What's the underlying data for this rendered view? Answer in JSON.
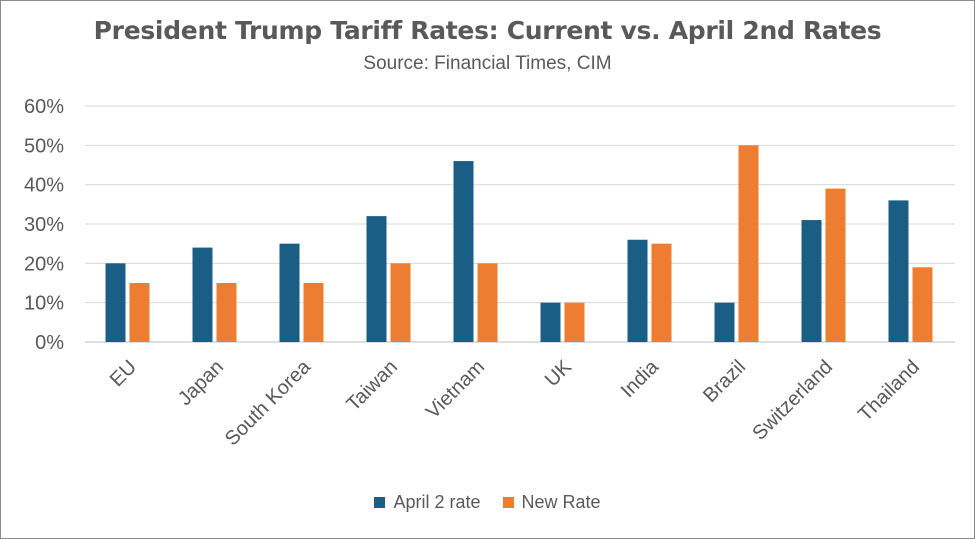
{
  "chart_data": {
    "type": "bar",
    "title": "President Trump Tariff Rates: Current vs. April 2nd Rates",
    "subtitle": "Source: Financial Times, CIM",
    "categories": [
      "EU",
      "Japan",
      "South Korea",
      "Taiwan",
      "Vietnam",
      "UK",
      "India",
      "Brazil",
      "Switzerland",
      "Thailand"
    ],
    "series": [
      {
        "name": "April 2 rate",
        "color": "#1a5e85",
        "values": [
          20,
          24,
          25,
          32,
          46,
          10,
          26,
          10,
          31,
          36
        ]
      },
      {
        "name": "New Rate",
        "color": "#ed7d31",
        "values": [
          15,
          15,
          15,
          20,
          20,
          10,
          25,
          50,
          39,
          19
        ]
      }
    ],
    "ylim": [
      0,
      60
    ],
    "yticks": [
      "0%",
      "10%",
      "20%",
      "30%",
      "40%",
      "50%",
      "60%"
    ],
    "xlabel": "",
    "ylabel": "",
    "grid": true,
    "legend_position": "bottom"
  }
}
